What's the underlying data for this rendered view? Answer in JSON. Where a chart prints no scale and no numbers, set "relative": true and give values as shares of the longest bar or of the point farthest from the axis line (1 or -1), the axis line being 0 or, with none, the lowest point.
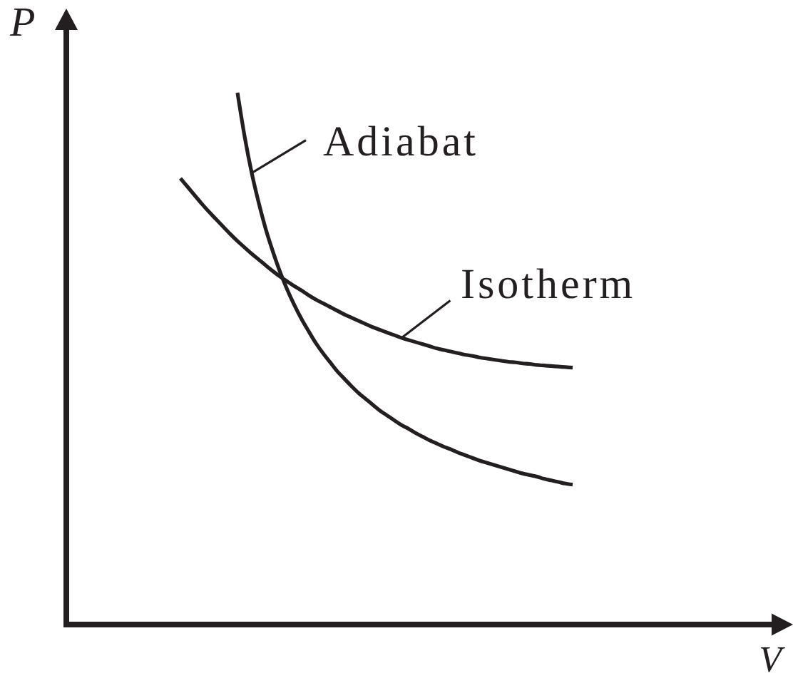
{
  "chart_data": {
    "type": "line",
    "xlabel": "V",
    "ylabel": "P",
    "relative": true,
    "categories": [
      null,
      null,
      null,
      null,
      null,
      null,
      null,
      null,
      null,
      null,
      null,
      null,
      null,
      null,
      null,
      null,
      null,
      null,
      null,
      null,
      null,
      null,
      null,
      null,
      null,
      null,
      null,
      null,
      null,
      null,
      null,
      null,
      null,
      null,
      null,
      null,
      null,
      null,
      null,
      null,
      null,
      null,
      null,
      null,
      null,
      null,
      null,
      null,
      null,
      null,
      null,
      null,
      null,
      null,
      null,
      null,
      null,
      null,
      null,
      null,
      null,
      null,
      null,
      null,
      null,
      null,
      null,
      null,
      null,
      null,
      null,
      null,
      null,
      null,
      null,
      null,
      null,
      null,
      null,
      null,
      null,
      null,
      null,
      null,
      null,
      null,
      null,
      null,
      null,
      null,
      null,
      null,
      null,
      null,
      null,
      null,
      null,
      null,
      null,
      null,
      null
    ],
    "series": [
      {
        "name": "Adiabat",
        "color": "#231f20",
        "values": [
          null,
          null,
          null,
          null,
          null,
          null,
          null,
          null,
          null,
          null,
          null,
          null,
          null,
          null,
          null,
          null,
          null,
          null,
          null,
          null,
          null,
          null,
          null,
          null,
          1,
          0.918,
          0.849,
          0.792,
          0.742,
          0.7,
          0.662,
          0.629,
          0.6,
          0.574,
          0.551,
          0.529,
          0.51,
          0.493,
          0.476,
          0.462,
          0.448,
          0.435,
          0.424,
          0.413,
          0.402,
          0.393,
          0.384,
          0.375,
          0.368,
          0.36,
          0.353,
          0.346,
          0.34,
          0.334,
          0.329,
          0.323,
          0.318,
          0.313,
          0.308,
          0.304,
          0.3,
          0.296,
          0.292,
          0.288,
          0.284,
          0.281,
          0.278,
          0.274,
          0.271,
          0.268,
          0.265,
          0.263,
          null,
          null,
          null,
          null,
          null,
          null,
          null,
          null,
          null,
          null,
          null,
          null,
          null,
          null,
          null,
          null,
          null,
          null,
          null,
          null,
          null,
          null,
          null,
          null,
          null,
          null,
          null,
          null,
          null
        ]
      },
      {
        "name": "Isotherm",
        "color": "#231f20",
        "values": [
          null,
          null,
          null,
          null,
          null,
          null,
          null,
          null,
          null,
          null,
          null,
          null,
          null,
          null,
          null,
          null,
          0.839,
          0.823,
          0.807,
          0.791,
          0.776,
          0.762,
          0.748,
          0.734,
          0.721,
          0.709,
          0.697,
          0.686,
          0.675,
          0.664,
          0.654,
          0.645,
          0.636,
          0.628,
          0.619,
          0.611,
          0.604,
          0.597,
          0.59,
          0.583,
          0.577,
          0.571,
          0.565,
          0.559,
          0.554,
          0.549,
          0.544,
          0.539,
          0.535,
          0.531,
          0.527,
          0.523,
          0.519,
          0.516,
          0.513,
          0.51,
          0.507,
          0.505,
          0.502,
          0.5,
          0.498,
          0.496,
          0.494,
          0.493,
          0.491,
          0.49,
          0.488,
          0.487,
          0.486,
          0.485,
          0.484,
          0.483,
          null,
          null,
          null,
          null,
          null,
          null,
          null,
          null,
          null,
          null,
          null,
          null,
          null,
          null,
          null,
          null,
          null,
          null,
          null,
          null,
          null,
          null,
          null,
          null,
          null,
          null,
          null,
          null,
          null
        ]
      }
    ]
  }
}
